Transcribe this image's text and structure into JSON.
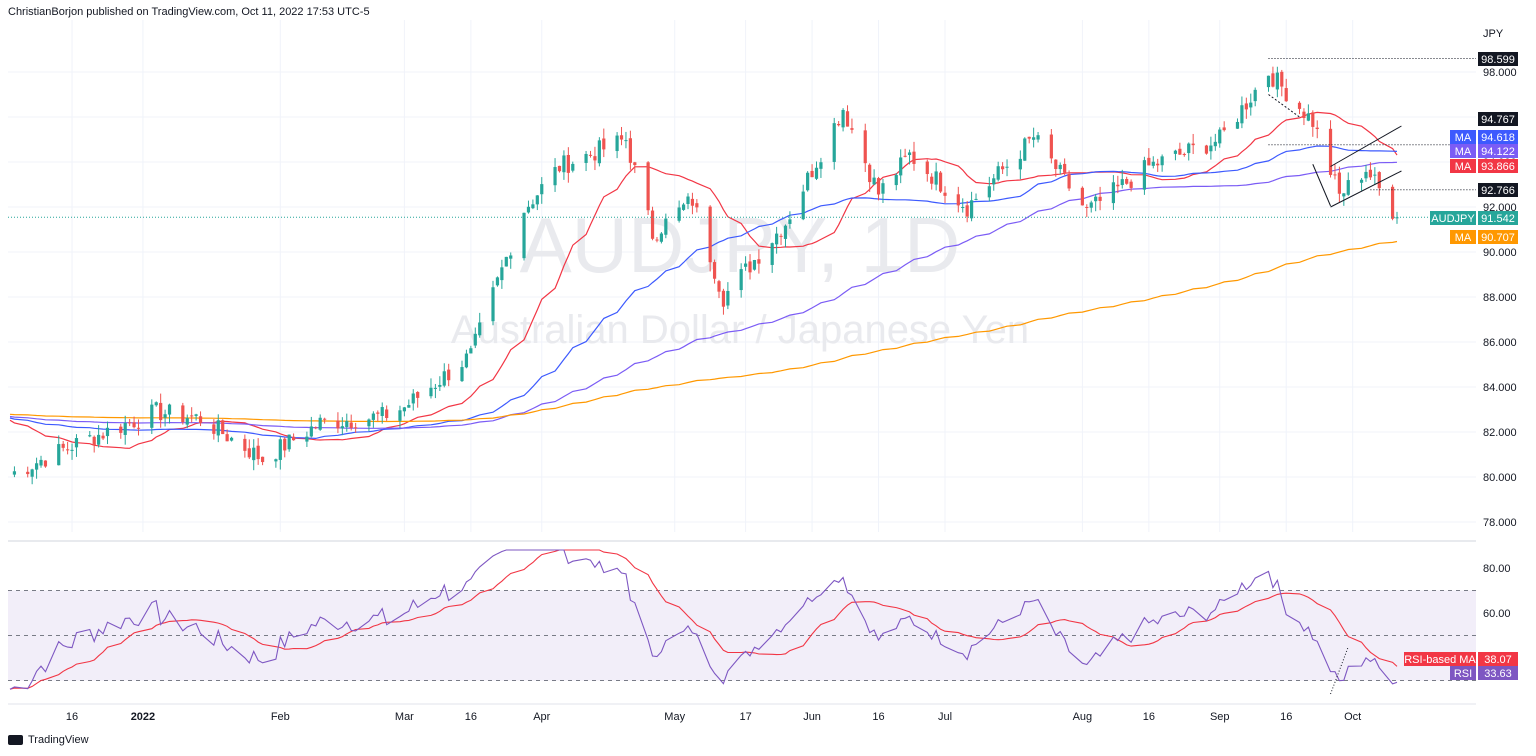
{
  "header": {
    "published_by": "ChristianBorjon published on TradingView.com, Oct 11, 2022 17:53 UTC-5"
  },
  "footer": {
    "brand": "TradingView"
  },
  "watermark": {
    "symbol": "AUDJPY, 1D",
    "name": "Australian Dollar / Japanese Yen"
  },
  "price_axis": {
    "currency": "JPY"
  },
  "colors": {
    "up": "#26a69a",
    "down": "#ef5350",
    "ma20": "#f23645",
    "ma50": "#3d5afe",
    "ma100": "#7b5cf5",
    "ma200": "#ff9800",
    "rsi": "#7e57c2",
    "rsi_ma": "#f23645"
  },
  "price_tags": [
    {
      "label": "",
      "value": "98.599",
      "bg": "#131722"
    },
    {
      "label": "",
      "value": "94.767",
      "bg": "#131722"
    },
    {
      "label": "MA",
      "value": "94.618",
      "bg": "#3d5afe"
    },
    {
      "label": "MA",
      "value": "94.122",
      "bg": "#7b5cf5"
    },
    {
      "label": "MA",
      "value": "93.866",
      "bg": "#f23645"
    },
    {
      "label": "",
      "value": "92.766",
      "bg": "#131722"
    },
    {
      "label": "AUDJPY",
      "value": "91.542",
      "bg": "#26a69a"
    },
    {
      "label": "MA",
      "value": "90.707",
      "bg": "#ff9800"
    }
  ],
  "rsi_tags": [
    {
      "label": "RSI-based MA",
      "value": "38.07",
      "bg": "#f23645"
    },
    {
      "label": "RSI",
      "value": "33.63",
      "bg": "#7e57c2"
    }
  ],
  "chart_data": [
    {
      "type": "candlestick",
      "title": "AUDJPY, 1D",
      "subtitle": "Australian Dollar / Japanese Yen",
      "ylabel": "JPY",
      "ylim": [
        77,
        99
      ],
      "y_ticks": [
        "78.000",
        "80.000",
        "82.000",
        "84.000",
        "86.000",
        "88.000",
        "90.000",
        "92.000",
        "94.000",
        "96.000",
        "98.000"
      ],
      "x_ticks": [
        "16",
        "2022",
        "Feb",
        "Mar",
        "16",
        "Apr",
        "May",
        "17",
        "Jun",
        "16",
        "Jul",
        "Aug",
        "16",
        "Sep",
        "16",
        "Oct"
      ],
      "grid": true,
      "close_approx": [
        {
          "x": "2021-12-03",
          "y": 80.2
        },
        {
          "x": "2021-12-16",
          "y": 81.4
        },
        {
          "x": "2022-01-04",
          "y": 82.9
        },
        {
          "x": "2022-01-14",
          "y": 82.6
        },
        {
          "x": "2022-01-28",
          "y": 80.8
        },
        {
          "x": "2022-02-10",
          "y": 82.4
        },
        {
          "x": "2022-02-24",
          "y": 82.7
        },
        {
          "x": "2022-03-01",
          "y": 83.1
        },
        {
          "x": "2022-03-16",
          "y": 85.4
        },
        {
          "x": "2022-03-28",
          "y": 91.9
        },
        {
          "x": "2022-04-05",
          "y": 93.8
        },
        {
          "x": "2022-04-20",
          "y": 95.0
        },
        {
          "x": "2022-04-26",
          "y": 90.8
        },
        {
          "x": "2022-05-05",
          "y": 92.3
        },
        {
          "x": "2022-05-12",
          "y": 88.0
        },
        {
          "x": "2022-05-26",
          "y": 91.3
        },
        {
          "x": "2022-06-08",
          "y": 96.4
        },
        {
          "x": "2022-06-16",
          "y": 92.6
        },
        {
          "x": "2022-06-23",
          "y": 94.3
        },
        {
          "x": "2022-07-06",
          "y": 92.0
        },
        {
          "x": "2022-07-21",
          "y": 95.1
        },
        {
          "x": "2022-08-02",
          "y": 91.8
        },
        {
          "x": "2022-08-16",
          "y": 93.8
        },
        {
          "x": "2022-09-01",
          "y": 95.0
        },
        {
          "x": "2022-09-12",
          "y": 98.0
        },
        {
          "x": "2022-09-22",
          "y": 95.8
        },
        {
          "x": "2022-09-28",
          "y": 92.5
        },
        {
          "x": "2022-10-04",
          "y": 93.7
        },
        {
          "x": "2022-10-11",
          "y": 91.542
        }
      ],
      "moving_averages": [
        {
          "name": "MA",
          "last": 94.618
        },
        {
          "name": "MA",
          "last": 94.122
        },
        {
          "name": "MA",
          "last": 93.866
        },
        {
          "name": "MA",
          "last": 90.707
        }
      ],
      "levels": [
        98.599,
        94.767,
        92.766
      ],
      "last_price": 91.542
    },
    {
      "type": "line",
      "ylim": [
        15,
        85
      ],
      "y_ticks": [
        "80.00",
        "60.00"
      ],
      "band": [
        30,
        70
      ],
      "series": [
        {
          "name": "RSI",
          "last": 33.63
        },
        {
          "name": "RSI-based MA",
          "last": 38.07
        }
      ]
    }
  ]
}
